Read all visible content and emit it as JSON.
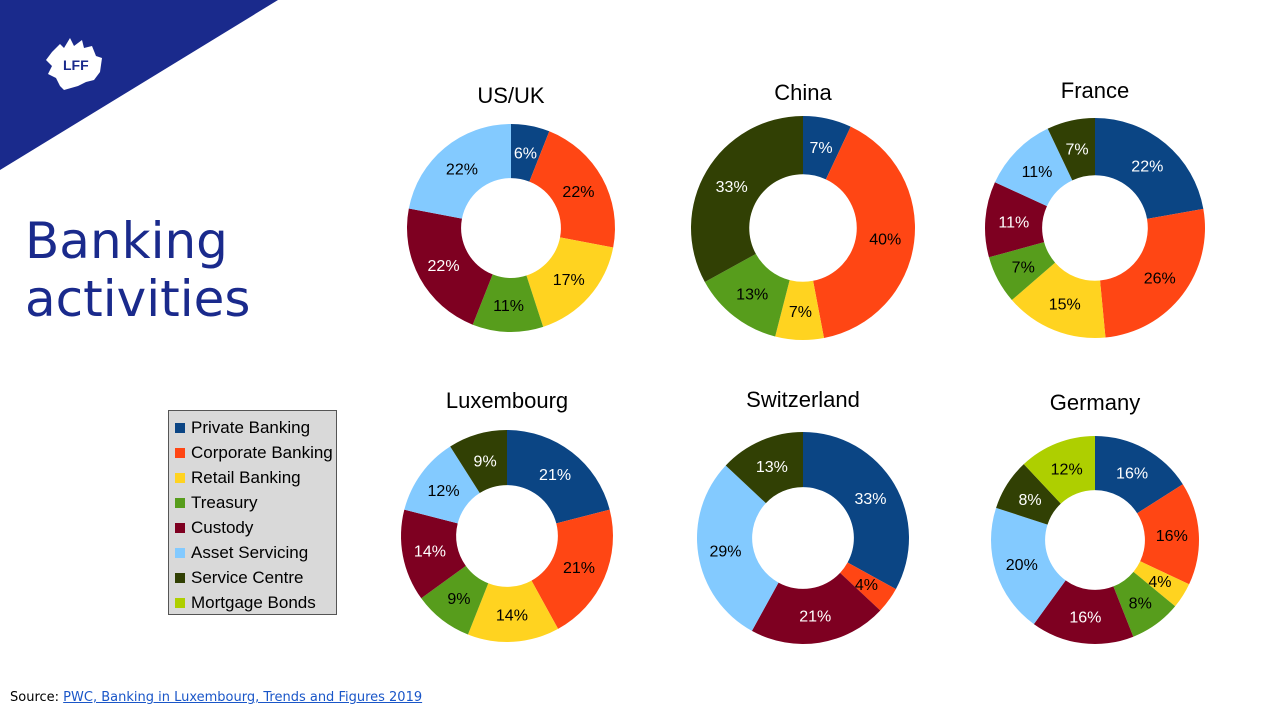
{
  "slide": {
    "title_line1": "Banking",
    "title_line2": "activities",
    "logo_text": "LFF",
    "source_prefix": "Source: ",
    "source_link": "PWC, Banking in Luxembourg, Trends and Figures 2019"
  },
  "colors": {
    "brand": "#1a2a8c",
    "Private Banking": "#0b4584",
    "Corporate Banking": "#ff4614",
    "Retail Banking": "#ffd320",
    "Treasury": "#579d1c",
    "Custody": "#7e0021",
    "Asset Servicing": "#83caff",
    "Service Centre": "#314004",
    "Mortgage Bonds": "#aecf00"
  },
  "legend": {
    "items": [
      "Private Banking",
      "Corporate Banking",
      "Retail Banking",
      "Treasury",
      "Custody",
      "Asset Servicing",
      "Service Centre",
      "Mortgage Bonds"
    ]
  },
  "chart_data": [
    {
      "type": "pie",
      "title": "US/UK",
      "categories": [
        "Private Banking",
        "Corporate Banking",
        "Retail Banking",
        "Treasury",
        "Custody",
        "Asset Servicing"
      ],
      "values": [
        6,
        22,
        17,
        11,
        22,
        22
      ],
      "labels": [
        "6%",
        "22%",
        "17%",
        "11%",
        "22%",
        "22%"
      ]
    },
    {
      "type": "pie",
      "title": "China",
      "categories": [
        "Private Banking",
        "Corporate Banking",
        "Retail Banking",
        "Treasury",
        "Service Centre"
      ],
      "values": [
        7,
        40,
        7,
        13,
        33
      ],
      "labels": [
        "7%",
        "40%",
        "7%",
        "13%",
        "33%"
      ]
    },
    {
      "type": "pie",
      "title": "France",
      "categories": [
        "Private Banking",
        "Corporate Banking",
        "Retail Banking",
        "Treasury",
        "Custody",
        "Asset Servicing",
        "Service Centre"
      ],
      "values": [
        22,
        26,
        15,
        7,
        11,
        11,
        7
      ],
      "labels": [
        "22%",
        "26%",
        "15%",
        "7%",
        "11%",
        "11%",
        "7%"
      ]
    },
    {
      "type": "pie",
      "title": "Luxembourg",
      "categories": [
        "Private Banking",
        "Corporate Banking",
        "Retail Banking",
        "Treasury",
        "Custody",
        "Asset Servicing",
        "Service Centre"
      ],
      "values": [
        21,
        21,
        14,
        9,
        14,
        12,
        9
      ],
      "labels": [
        "21%",
        "21%",
        "14%",
        "9%",
        "14%",
        "12%",
        "9%"
      ]
    },
    {
      "type": "pie",
      "title": "Switzerland",
      "categories": [
        "Private Banking",
        "Corporate Banking",
        "Custody",
        "Asset Servicing",
        "Service Centre"
      ],
      "values": [
        33,
        4,
        21,
        29,
        13
      ],
      "labels": [
        "33%",
        "4%",
        "21%",
        "29%",
        "13%"
      ]
    },
    {
      "type": "pie",
      "title": "Germany",
      "categories": [
        "Private Banking",
        "Corporate Banking",
        "Retail Banking",
        "Treasury",
        "Custody",
        "Asset Servicing",
        "Service Centre",
        "Mortgage Bonds"
      ],
      "values": [
        16,
        16,
        4,
        8,
        16,
        20,
        8,
        12
      ],
      "labels": [
        "16%",
        "16%",
        "4%",
        "8%",
        "16%",
        "20%",
        "8%",
        "12%"
      ]
    }
  ]
}
